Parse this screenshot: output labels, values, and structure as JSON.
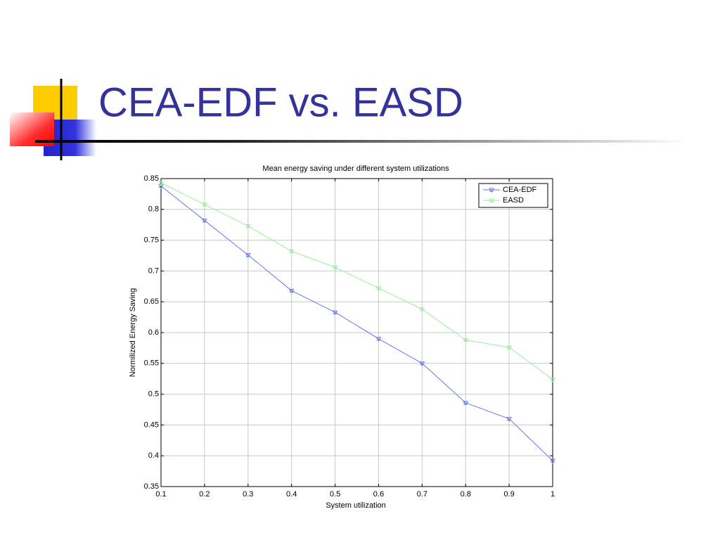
{
  "slide_title": "CEA-EDF vs. EASD",
  "chart_data": {
    "type": "line",
    "title": "Mean energy saving under different system utilizations",
    "x_label": "System utilization",
    "y_label": "Normilized Energy Saving",
    "x": [
      0.1,
      0.2,
      0.3,
      0.4,
      0.5,
      0.6,
      0.7,
      0.8,
      0.9,
      1
    ],
    "series": [
      {
        "name": "CEA-EDF",
        "color": "#6677ee",
        "values": [
          0.838,
          0.782,
          0.726,
          0.668,
          0.633,
          0.59,
          0.55,
          0.486,
          0.46,
          0.392
        ]
      },
      {
        "name": "EASD",
        "color": "#99ee99",
        "values": [
          0.843,
          0.808,
          0.773,
          0.732,
          0.706,
          0.672,
          0.638,
          0.588,
          0.576,
          0.524
        ]
      }
    ],
    "xlim": [
      0.1,
      1
    ],
    "xticks": [
      0.1,
      0.2,
      0.3,
      0.4,
      0.5,
      0.6,
      0.7,
      0.8,
      0.9,
      1
    ],
    "ylim": [
      0.35,
      0.85
    ],
    "yticks": [
      0.35,
      0.4,
      0.45,
      0.5,
      0.55,
      0.6,
      0.65,
      0.7,
      0.75,
      0.8,
      0.85
    ],
    "grid": true,
    "legend": "upper right"
  }
}
